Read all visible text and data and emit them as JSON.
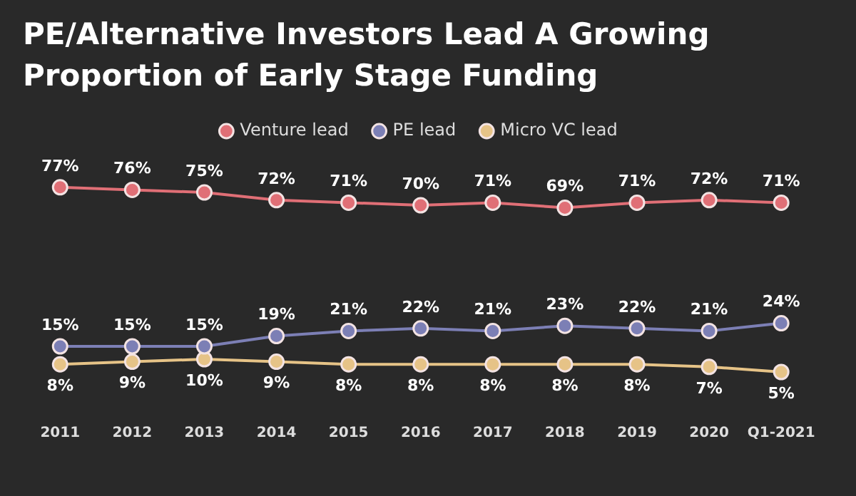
{
  "chart_data": {
    "type": "line",
    "title": "PE/Alternative Investors Lead A Growing Proportion of Early Stage Funding",
    "categories": [
      "2011",
      "2012",
      "2013",
      "2014",
      "2015",
      "2016",
      "2017",
      "2018",
      "2019",
      "2020",
      "Q1-2021"
    ],
    "series": [
      {
        "name": "Venture lead",
        "color": "#e06f76",
        "values": [
          77,
          76,
          75,
          72,
          71,
          70,
          71,
          69,
          71,
          72,
          71
        ],
        "value_labels": [
          "77%",
          "76%",
          "75%",
          "72%",
          "71%",
          "70%",
          "71%",
          "69%",
          "71%",
          "72%",
          "71%"
        ]
      },
      {
        "name": "PE lead",
        "color": "#7c7fb5",
        "values": [
          15,
          15,
          15,
          19,
          21,
          22,
          21,
          23,
          22,
          21,
          24
        ],
        "value_labels": [
          "15%",
          "15%",
          "15%",
          "19%",
          "21%",
          "22%",
          "21%",
          "23%",
          "22%",
          "21%",
          "24%"
        ]
      },
      {
        "name": "Micro VC lead",
        "color": "#e6c387",
        "values": [
          8,
          9,
          10,
          9,
          8,
          8,
          8,
          8,
          8,
          7,
          5
        ],
        "value_labels": [
          "8%",
          "9%",
          "10%",
          "9%",
          "8%",
          "8%",
          "8%",
          "8%",
          "8%",
          "7%",
          "5%"
        ]
      }
    ],
    "legend": "top",
    "marker": "circle",
    "line_style": "solid",
    "grid": false,
    "tick_labels": "x"
  }
}
